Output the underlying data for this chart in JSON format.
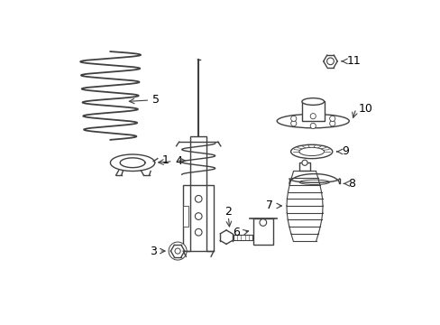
{
  "background_color": "#ffffff",
  "line_color": "#404040",
  "label_color": "#000000",
  "figsize": [
    4.89,
    3.6
  ],
  "dpi": 100
}
